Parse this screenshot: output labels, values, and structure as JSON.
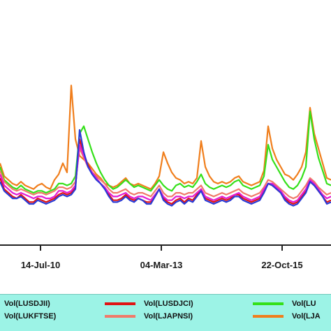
{
  "chart_data": {
    "type": "line",
    "title": "",
    "xlabel": "",
    "ylabel": "",
    "grid": false,
    "legend_position": "bottom",
    "x_tick_labels": [
      "14-Jul-10",
      "04-Mar-13",
      "22-Oct-15"
    ],
    "ylim": [
      0,
      1
    ],
    "series": [
      {
        "name": "Vol(LUSDJII)",
        "color": "#2a3bd6",
        "values": [
          0.32,
          0.27,
          0.25,
          0.23,
          0.23,
          0.24,
          0.22,
          0.2,
          0.2,
          0.22,
          0.21,
          0.2,
          0.21,
          0.22,
          0.24,
          0.25,
          0.24,
          0.25,
          0.28,
          0.6,
          0.48,
          0.4,
          0.36,
          0.33,
          0.31,
          0.28,
          0.24,
          0.21,
          0.21,
          0.22,
          0.24,
          0.22,
          0.21,
          0.23,
          0.22,
          0.2,
          0.2,
          0.24,
          0.28,
          0.22,
          0.2,
          0.19,
          0.21,
          0.22,
          0.2,
          0.22,
          0.21,
          0.24,
          0.27,
          0.22,
          0.21,
          0.2,
          0.21,
          0.22,
          0.21,
          0.22,
          0.24,
          0.24,
          0.22,
          0.21,
          0.2,
          0.21,
          0.22,
          0.26,
          0.31,
          0.3,
          0.28,
          0.26,
          0.22,
          0.2,
          0.19,
          0.2,
          0.23,
          0.26,
          0.32,
          0.3,
          0.27,
          0.24,
          0.2,
          0.21
        ]
      },
      {
        "name": "Vol(LUKFTSE)",
        "color": "#e21bd4",
        "values": [
          0.36,
          0.3,
          0.28,
          0.26,
          0.25,
          0.26,
          0.25,
          0.24,
          0.23,
          0.24,
          0.24,
          0.23,
          0.23,
          0.24,
          0.27,
          0.27,
          0.26,
          0.27,
          0.3,
          0.52,
          0.46,
          0.4,
          0.37,
          0.34,
          0.31,
          0.29,
          0.26,
          0.24,
          0.24,
          0.25,
          0.26,
          0.24,
          0.23,
          0.24,
          0.24,
          0.23,
          0.22,
          0.25,
          0.28,
          0.24,
          0.22,
          0.22,
          0.24,
          0.24,
          0.23,
          0.24,
          0.24,
          0.26,
          0.28,
          0.24,
          0.23,
          0.22,
          0.23,
          0.24,
          0.23,
          0.24,
          0.25,
          0.26,
          0.24,
          0.23,
          0.22,
          0.23,
          0.24,
          0.28,
          0.31,
          0.31,
          0.29,
          0.27,
          0.24,
          0.22,
          0.21,
          0.22,
          0.25,
          0.28,
          0.33,
          0.31,
          0.28,
          0.25,
          0.23,
          0.24
        ]
      },
      {
        "name": "Vol(LUSDJCI)",
        "color": "#e01414",
        "values": [
          0.34,
          0.28,
          0.26,
          0.24,
          0.23,
          0.25,
          0.23,
          0.21,
          0.21,
          0.23,
          0.22,
          0.21,
          0.22,
          0.23,
          0.25,
          0.26,
          0.25,
          0.26,
          0.29,
          0.55,
          0.47,
          0.41,
          0.37,
          0.34,
          0.31,
          0.29,
          0.25,
          0.22,
          0.22,
          0.23,
          0.25,
          0.23,
          0.22,
          0.23,
          0.22,
          0.21,
          0.21,
          0.24,
          0.28,
          0.23,
          0.21,
          0.2,
          0.22,
          0.23,
          0.21,
          0.23,
          0.22,
          0.25,
          0.28,
          0.23,
          0.22,
          0.21,
          0.22,
          0.23,
          0.22,
          0.23,
          0.25,
          0.25,
          0.23,
          0.22,
          0.21,
          0.22,
          0.23,
          0.27,
          0.31,
          0.3,
          0.28,
          0.26,
          0.23,
          0.21,
          0.2,
          0.21,
          0.24,
          0.27,
          0.32,
          0.3,
          0.27,
          0.24,
          0.21,
          0.22
        ]
      },
      {
        "name": "Vol(LJAPNSI)",
        "color": "#f07a6a",
        "values": [
          0.38,
          0.32,
          0.3,
          0.28,
          0.27,
          0.28,
          0.27,
          0.26,
          0.25,
          0.26,
          0.26,
          0.25,
          0.26,
          0.27,
          0.29,
          0.29,
          0.28,
          0.29,
          0.32,
          0.5,
          0.45,
          0.4,
          0.37,
          0.35,
          0.33,
          0.31,
          0.28,
          0.26,
          0.26,
          0.27,
          0.28,
          0.26,
          0.25,
          0.26,
          0.26,
          0.25,
          0.24,
          0.27,
          0.3,
          0.26,
          0.24,
          0.24,
          0.26,
          0.26,
          0.25,
          0.26,
          0.26,
          0.28,
          0.3,
          0.26,
          0.25,
          0.24,
          0.25,
          0.26,
          0.25,
          0.26,
          0.27,
          0.28,
          0.26,
          0.25,
          0.24,
          0.25,
          0.26,
          0.29,
          0.33,
          0.32,
          0.3,
          0.28,
          0.26,
          0.24,
          0.23,
          0.24,
          0.27,
          0.3,
          0.34,
          0.32,
          0.29,
          0.27,
          0.25,
          0.26
        ]
      },
      {
        "name": "Vol(LU",
        "color": "#35e01a",
        "values": [
          0.4,
          0.33,
          0.31,
          0.29,
          0.28,
          0.3,
          0.28,
          0.27,
          0.26,
          0.27,
          0.27,
          0.26,
          0.27,
          0.28,
          0.31,
          0.31,
          0.3,
          0.31,
          0.35,
          0.58,
          0.62,
          0.55,
          0.48,
          0.42,
          0.37,
          0.33,
          0.3,
          0.28,
          0.29,
          0.31,
          0.33,
          0.31,
          0.29,
          0.3,
          0.29,
          0.28,
          0.27,
          0.3,
          0.33,
          0.3,
          0.28,
          0.27,
          0.3,
          0.31,
          0.29,
          0.3,
          0.29,
          0.32,
          0.36,
          0.31,
          0.29,
          0.28,
          0.29,
          0.3,
          0.29,
          0.3,
          0.32,
          0.33,
          0.3,
          0.29,
          0.28,
          0.29,
          0.3,
          0.35,
          0.52,
          0.44,
          0.4,
          0.36,
          0.32,
          0.29,
          0.28,
          0.3,
          0.34,
          0.4,
          0.7,
          0.55,
          0.45,
          0.38,
          0.31,
          0.3
        ]
      },
      {
        "name": "Vol(LJA",
        "color": "#f07e1c",
        "values": [
          0.42,
          0.35,
          0.33,
          0.31,
          0.3,
          0.32,
          0.3,
          0.29,
          0.28,
          0.3,
          0.31,
          0.29,
          0.28,
          0.33,
          0.36,
          0.42,
          0.37,
          0.84,
          0.55,
          0.46,
          0.44,
          0.42,
          0.39,
          0.36,
          0.34,
          0.31,
          0.3,
          0.29,
          0.3,
          0.32,
          0.34,
          0.31,
          0.3,
          0.31,
          0.3,
          0.29,
          0.28,
          0.31,
          0.35,
          0.48,
          0.42,
          0.37,
          0.34,
          0.33,
          0.31,
          0.32,
          0.31,
          0.34,
          0.54,
          0.4,
          0.35,
          0.32,
          0.31,
          0.32,
          0.31,
          0.32,
          0.34,
          0.35,
          0.32,
          0.31,
          0.3,
          0.31,
          0.32,
          0.38,
          0.62,
          0.5,
          0.44,
          0.4,
          0.36,
          0.35,
          0.33,
          0.36,
          0.4,
          0.48,
          0.72,
          0.58,
          0.5,
          0.42,
          0.34,
          0.33
        ]
      }
    ]
  }
}
